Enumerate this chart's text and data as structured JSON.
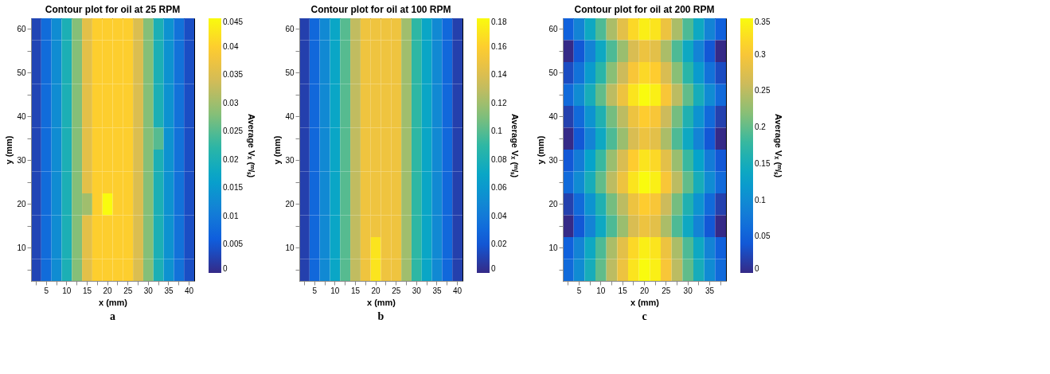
{
  "chart_data": [
    {
      "type": "heatmap",
      "title": "Contour plot for oil at 25 RPM",
      "xlabel": "x (mm)",
      "ylabel": "y (mm)",
      "clabel": "Average Vₓ (ᵐ/ₛ)",
      "annotations": [
        "a"
      ],
      "grid": false,
      "categories": [
        null,
        "5",
        null,
        "10",
        null,
        "15",
        null,
        "20",
        null,
        "25",
        null,
        "30",
        null,
        "35",
        null,
        "40"
      ],
      "y_categories": [
        "60",
        null,
        "50",
        null,
        "40",
        null,
        "30",
        null,
        "20",
        null,
        "10",
        null
      ],
      "clim": [
        0,
        0.045
      ],
      "cticks": [
        0,
        0.005,
        0.01,
        0.015,
        0.02,
        0.025,
        0.03,
        0.035,
        0.04,
        0.045
      ],
      "cells": [
        [
          0.003,
          0.008,
          0.013,
          0.02,
          0.028,
          0.036,
          0.04,
          0.04,
          0.04,
          0.04,
          0.035,
          0.028,
          0.02,
          0.014,
          0.009,
          0.004
        ],
        [
          0.003,
          0.008,
          0.013,
          0.02,
          0.028,
          0.036,
          0.04,
          0.04,
          0.04,
          0.04,
          0.035,
          0.028,
          0.02,
          0.014,
          0.009,
          0.004
        ],
        [
          0.003,
          0.008,
          0.013,
          0.02,
          0.028,
          0.036,
          0.04,
          0.04,
          0.04,
          0.04,
          0.035,
          0.028,
          0.02,
          0.014,
          0.009,
          0.004
        ],
        [
          0.003,
          0.008,
          0.013,
          0.02,
          0.028,
          0.036,
          0.04,
          0.04,
          0.04,
          0.04,
          0.035,
          0.028,
          0.02,
          0.014,
          0.009,
          0.004
        ],
        [
          0.003,
          0.008,
          0.013,
          0.02,
          0.028,
          0.036,
          0.04,
          0.04,
          0.04,
          0.04,
          0.035,
          0.028,
          0.02,
          0.014,
          0.009,
          0.004
        ],
        [
          0.003,
          0.008,
          0.013,
          0.02,
          0.028,
          0.036,
          0.04,
          0.04,
          0.04,
          0.04,
          0.035,
          0.028,
          0.025,
          0.014,
          0.009,
          0.004
        ],
        [
          0.003,
          0.008,
          0.013,
          0.02,
          0.028,
          0.036,
          0.04,
          0.04,
          0.04,
          0.04,
          0.035,
          0.028,
          0.02,
          0.014,
          0.009,
          0.004
        ],
        [
          0.003,
          0.008,
          0.013,
          0.02,
          0.028,
          0.036,
          0.04,
          0.04,
          0.04,
          0.04,
          0.035,
          0.028,
          0.02,
          0.014,
          0.009,
          0.004
        ],
        [
          0.003,
          0.008,
          0.013,
          0.02,
          0.028,
          0.03,
          0.04,
          0.045,
          0.04,
          0.04,
          0.035,
          0.028,
          0.02,
          0.014,
          0.009,
          0.004
        ],
        [
          0.003,
          0.008,
          0.013,
          0.02,
          0.028,
          0.036,
          0.04,
          0.04,
          0.04,
          0.04,
          0.035,
          0.028,
          0.02,
          0.014,
          0.009,
          0.004
        ],
        [
          0.003,
          0.008,
          0.013,
          0.02,
          0.028,
          0.036,
          0.04,
          0.04,
          0.04,
          0.04,
          0.035,
          0.028,
          0.02,
          0.014,
          0.009,
          0.004
        ],
        [
          0.003,
          0.008,
          0.013,
          0.02,
          0.028,
          0.036,
          0.04,
          0.04,
          0.04,
          0.04,
          0.035,
          0.028,
          0.02,
          0.014,
          0.009,
          0.004
        ]
      ]
    },
    {
      "type": "heatmap",
      "title": "Contour plot for oil at 100 RPM",
      "xlabel": "x (mm)",
      "ylabel": "y (mm)",
      "clabel": "Average Vₓ (ᵐ/ₛ)",
      "annotations": [
        "b"
      ],
      "grid": false,
      "categories": [
        null,
        "5",
        null,
        "10",
        null,
        "15",
        null,
        "20",
        null,
        "25",
        null,
        "30",
        null,
        "35",
        null,
        "40"
      ],
      "y_categories": [
        "60",
        null,
        "50",
        null,
        "40",
        null,
        "30",
        null,
        "20",
        null,
        "10",
        null
      ],
      "clim": [
        0,
        0.18
      ],
      "cticks": [
        0,
        0.02,
        0.04,
        0.06,
        0.08,
        0.1,
        0.12,
        0.14,
        0.16,
        0.18
      ],
      "cells": [
        [
          0.01,
          0.03,
          0.05,
          0.07,
          0.1,
          0.13,
          0.15,
          0.15,
          0.15,
          0.15,
          0.12,
          0.09,
          0.07,
          0.05,
          0.03,
          0.01
        ],
        [
          0.01,
          0.03,
          0.05,
          0.07,
          0.1,
          0.13,
          0.15,
          0.15,
          0.15,
          0.15,
          0.12,
          0.09,
          0.07,
          0.05,
          0.03,
          0.01
        ],
        [
          0.01,
          0.03,
          0.05,
          0.07,
          0.1,
          0.13,
          0.15,
          0.15,
          0.15,
          0.15,
          0.12,
          0.09,
          0.07,
          0.05,
          0.03,
          0.01
        ],
        [
          0.01,
          0.03,
          0.05,
          0.07,
          0.1,
          0.13,
          0.15,
          0.15,
          0.15,
          0.15,
          0.12,
          0.09,
          0.07,
          0.05,
          0.03,
          0.01
        ],
        [
          0.01,
          0.03,
          0.05,
          0.07,
          0.1,
          0.13,
          0.15,
          0.15,
          0.15,
          0.15,
          0.12,
          0.09,
          0.07,
          0.05,
          0.03,
          0.01
        ],
        [
          0.01,
          0.03,
          0.05,
          0.07,
          0.1,
          0.13,
          0.15,
          0.15,
          0.15,
          0.15,
          0.12,
          0.09,
          0.07,
          0.05,
          0.03,
          0.01
        ],
        [
          0.01,
          0.03,
          0.05,
          0.07,
          0.1,
          0.13,
          0.15,
          0.15,
          0.15,
          0.15,
          0.12,
          0.09,
          0.07,
          0.05,
          0.03,
          0.01
        ],
        [
          0.01,
          0.03,
          0.05,
          0.07,
          0.1,
          0.13,
          0.15,
          0.15,
          0.15,
          0.15,
          0.12,
          0.09,
          0.07,
          0.05,
          0.03,
          0.01
        ],
        [
          0.01,
          0.03,
          0.05,
          0.07,
          0.1,
          0.13,
          0.15,
          0.15,
          0.15,
          0.15,
          0.12,
          0.09,
          0.07,
          0.05,
          0.03,
          0.01
        ],
        [
          0.01,
          0.03,
          0.05,
          0.07,
          0.1,
          0.13,
          0.15,
          0.15,
          0.15,
          0.15,
          0.12,
          0.09,
          0.07,
          0.05,
          0.03,
          0.01
        ],
        [
          0.01,
          0.03,
          0.05,
          0.07,
          0.1,
          0.13,
          0.15,
          0.17,
          0.15,
          0.15,
          0.12,
          0.09,
          0.07,
          0.05,
          0.03,
          0.01
        ],
        [
          0.01,
          0.03,
          0.05,
          0.07,
          0.1,
          0.13,
          0.15,
          0.17,
          0.15,
          0.15,
          0.12,
          0.09,
          0.07,
          0.05,
          0.03,
          0.01
        ]
      ]
    },
    {
      "type": "heatmap",
      "title": "Contour plot for oil at 200 RPM",
      "xlabel": "x (mm)",
      "ylabel": "y (mm)",
      "clabel": "Average Vₓ (ᵐ/ₛ)",
      "annotations": [
        "c"
      ],
      "grid": false,
      "categories": [
        null,
        "5",
        null,
        "10",
        null,
        "15",
        null,
        "20",
        null,
        "25",
        null,
        "30",
        null,
        "35",
        null
      ],
      "y_categories": [
        "60",
        null,
        "50",
        null,
        "40",
        null,
        "30",
        null,
        "20",
        null,
        "10",
        null
      ],
      "clim": [
        0,
        0.35
      ],
      "cticks": [
        0,
        0.05,
        0.1,
        0.15,
        0.2,
        0.25,
        0.3,
        0.35
      ],
      "cells": [
        [
          0.05,
          0.09,
          0.14,
          0.19,
          0.24,
          0.28,
          0.32,
          0.34,
          0.33,
          0.29,
          0.24,
          0.19,
          0.14,
          0.09,
          0.05
        ],
        [
          0.0,
          0.04,
          0.09,
          0.14,
          0.19,
          0.23,
          0.27,
          0.29,
          0.28,
          0.24,
          0.19,
          0.14,
          0.09,
          0.04,
          0.0
        ],
        [
          0.03,
          0.07,
          0.12,
          0.17,
          0.22,
          0.26,
          0.3,
          0.32,
          0.31,
          0.27,
          0.22,
          0.17,
          0.12,
          0.07,
          0.03
        ],
        [
          0.06,
          0.1,
          0.15,
          0.2,
          0.25,
          0.29,
          0.33,
          0.35,
          0.34,
          0.3,
          0.25,
          0.2,
          0.15,
          0.1,
          0.06
        ],
        [
          0.02,
          0.06,
          0.11,
          0.16,
          0.21,
          0.25,
          0.29,
          0.31,
          0.3,
          0.26,
          0.21,
          0.16,
          0.11,
          0.06,
          0.02
        ],
        [
          0.0,
          0.04,
          0.09,
          0.14,
          0.19,
          0.23,
          0.27,
          0.29,
          0.28,
          0.24,
          0.19,
          0.14,
          0.09,
          0.04,
          0.0
        ],
        [
          0.04,
          0.08,
          0.13,
          0.18,
          0.23,
          0.27,
          0.31,
          0.33,
          0.32,
          0.28,
          0.23,
          0.18,
          0.13,
          0.08,
          0.04
        ],
        [
          0.06,
          0.1,
          0.15,
          0.2,
          0.25,
          0.29,
          0.33,
          0.35,
          0.34,
          0.3,
          0.25,
          0.2,
          0.15,
          0.1,
          0.06
        ],
        [
          0.02,
          0.06,
          0.11,
          0.16,
          0.21,
          0.25,
          0.29,
          0.31,
          0.3,
          0.26,
          0.21,
          0.16,
          0.11,
          0.06,
          0.02
        ],
        [
          0.0,
          0.04,
          0.09,
          0.14,
          0.19,
          0.23,
          0.27,
          0.29,
          0.28,
          0.24,
          0.19,
          0.14,
          0.09,
          0.04,
          0.0
        ],
        [
          0.05,
          0.09,
          0.14,
          0.19,
          0.24,
          0.28,
          0.32,
          0.34,
          0.33,
          0.29,
          0.24,
          0.19,
          0.14,
          0.09,
          0.05
        ],
        [
          0.06,
          0.1,
          0.15,
          0.2,
          0.25,
          0.29,
          0.33,
          0.35,
          0.34,
          0.3,
          0.25,
          0.2,
          0.15,
          0.1,
          0.06
        ]
      ]
    }
  ]
}
